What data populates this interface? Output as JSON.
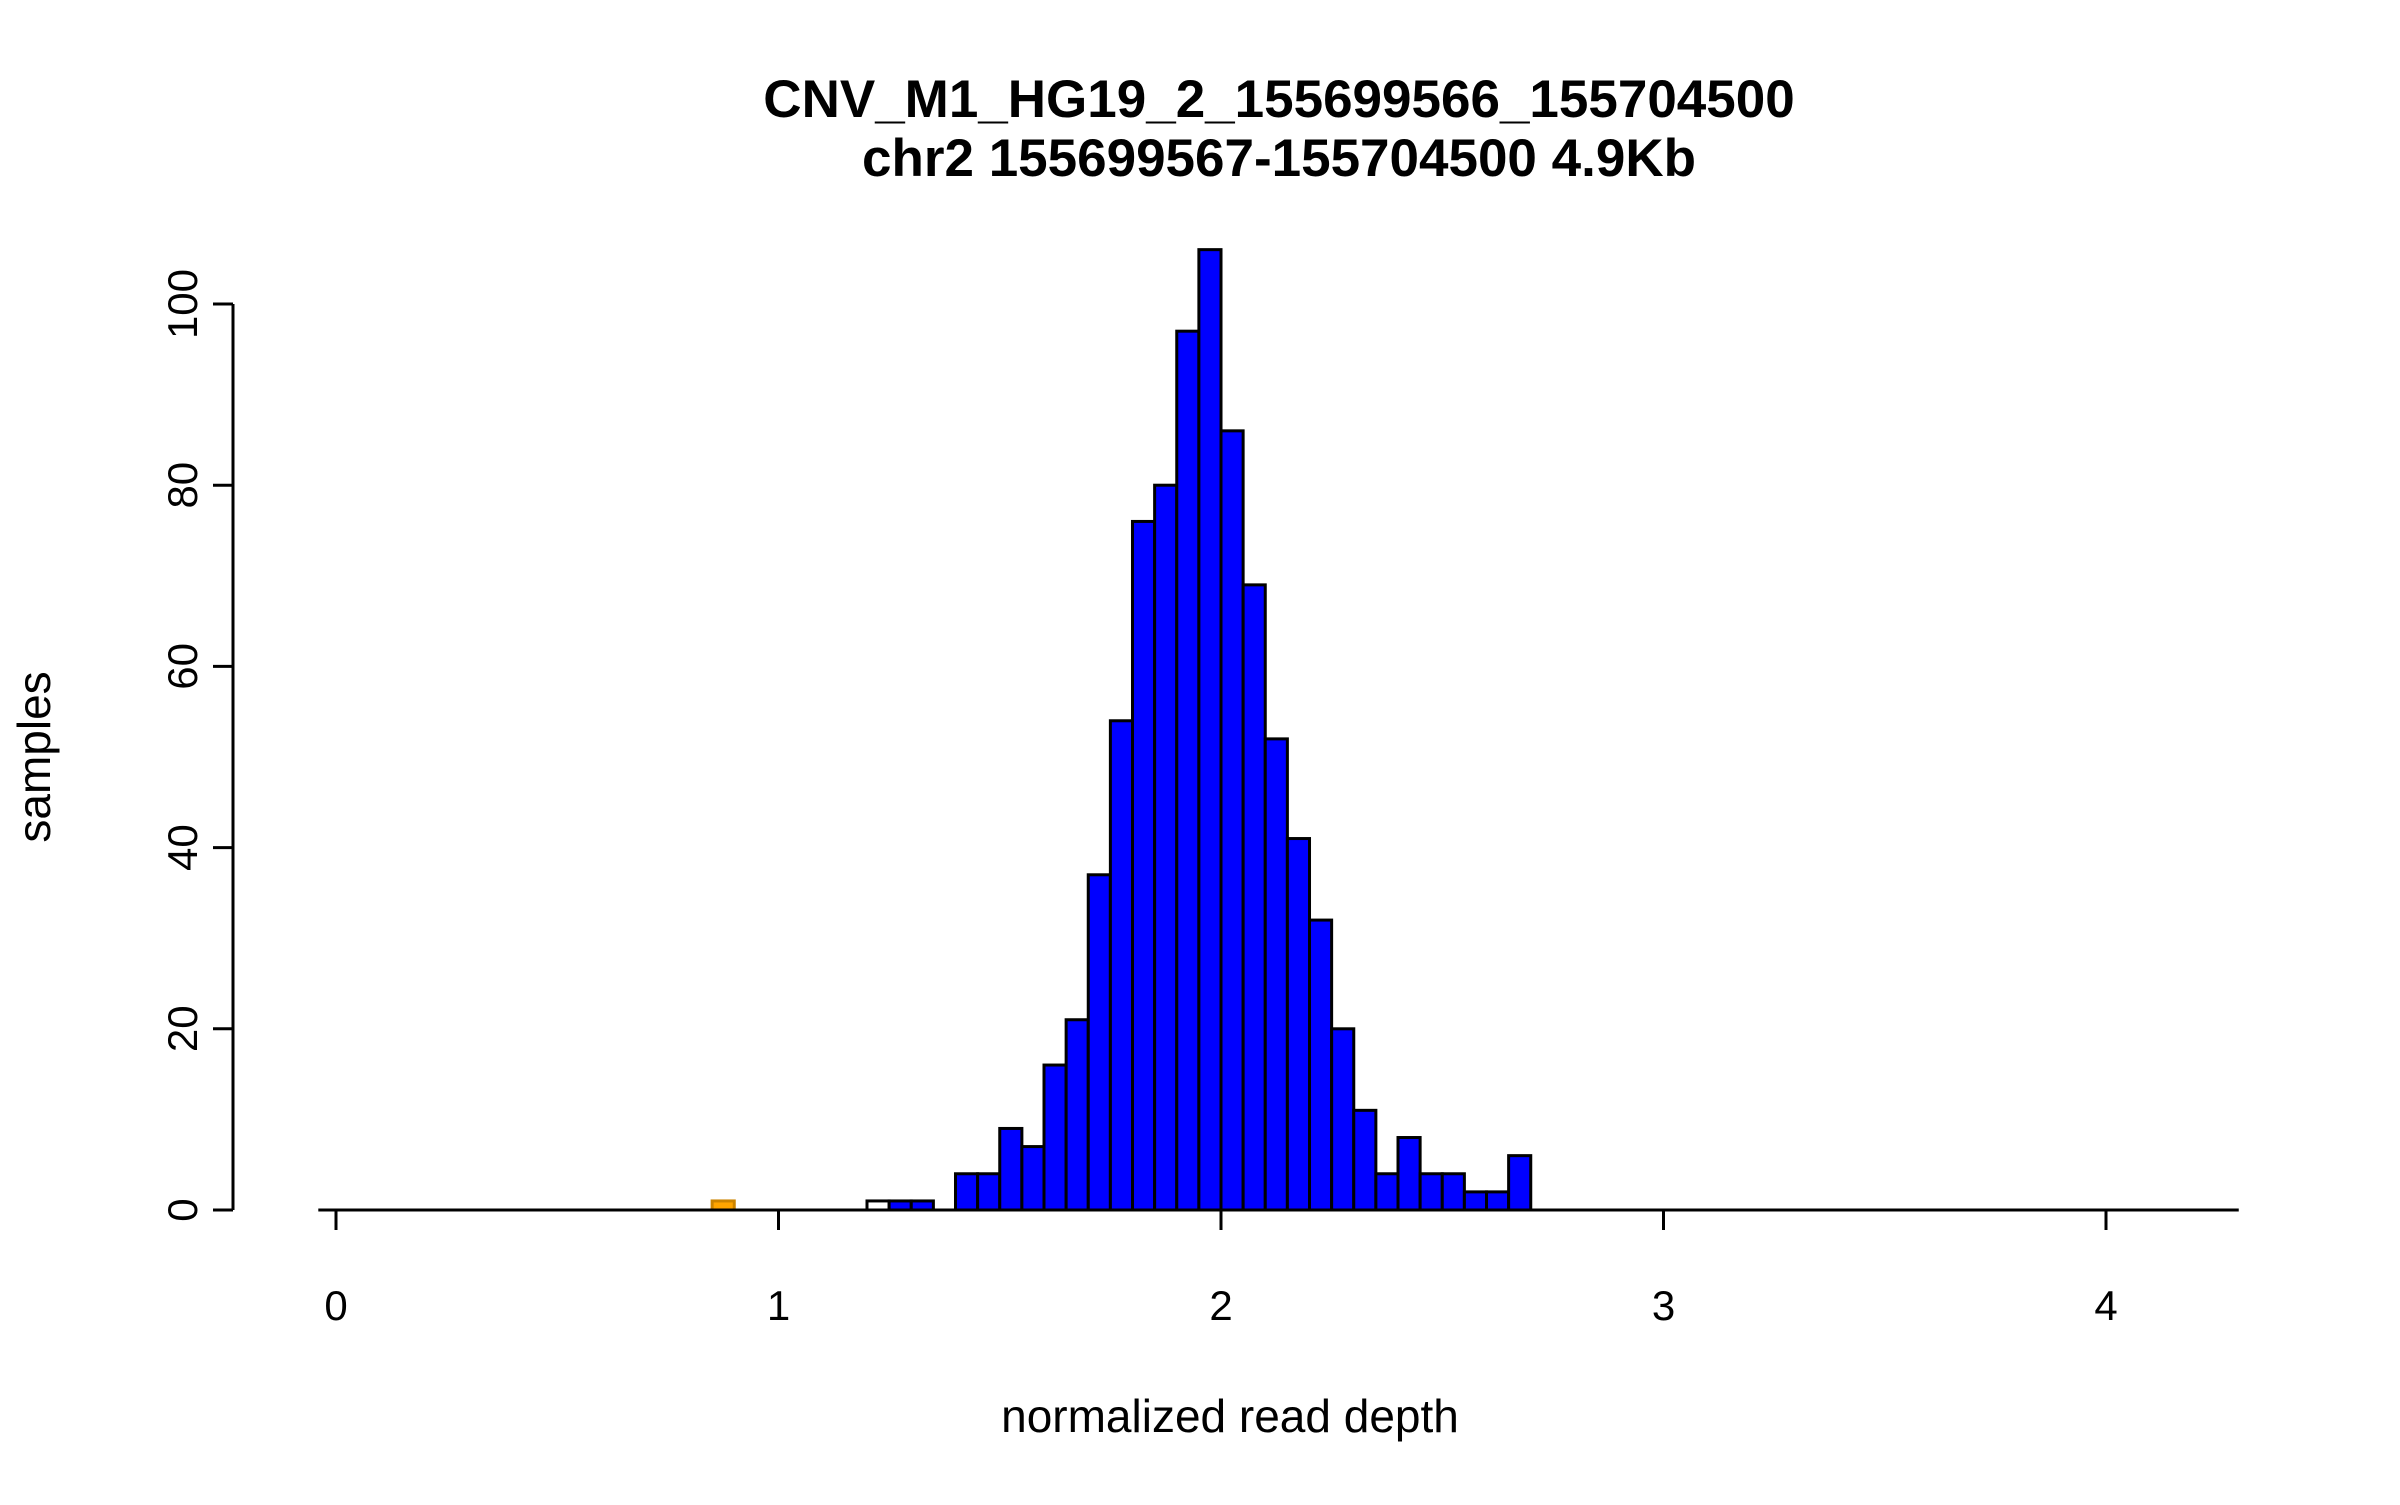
{
  "chart_data": {
    "type": "bar",
    "subtype": "histogram",
    "title": "CNV_M1_HG19_2_155699566_155704500",
    "subtitle": "chr2 155699567-155704500 4.9Kb",
    "xlabel": "normalized read depth",
    "ylabel": "samples",
    "x_ticks": [
      0,
      1,
      2,
      3,
      4
    ],
    "y_ticks": [
      0,
      20,
      40,
      60,
      80,
      100
    ],
    "xlim": [
      -0.04,
      4.3
    ],
    "ylim": [
      0,
      106
    ],
    "bin_width": 0.05,
    "grid": "off",
    "legend": "none",
    "bar_border_color": "#000000",
    "colors": {
      "main_fill": "#0000FF",
      "outlier_low_fill": "#FFA500",
      "outlier_white_fill": "#FFFFFF",
      "axis": "#000000",
      "background": "#FFFFFF"
    },
    "bars": [
      {
        "x": 0.85,
        "count": 1,
        "color": "#FFA500",
        "border": "#CC8400"
      },
      {
        "x": 1.2,
        "count": 1,
        "color": "#FFFFFF"
      },
      {
        "x": 1.25,
        "count": 1,
        "color": "#0000FF"
      },
      {
        "x": 1.3,
        "count": 1,
        "color": "#0000FF"
      },
      {
        "x": 1.4,
        "count": 4,
        "color": "#0000FF"
      },
      {
        "x": 1.45,
        "count": 4,
        "color": "#0000FF"
      },
      {
        "x": 1.5,
        "count": 9,
        "color": "#0000FF"
      },
      {
        "x": 1.55,
        "count": 7,
        "color": "#0000FF"
      },
      {
        "x": 1.6,
        "count": 16,
        "color": "#0000FF"
      },
      {
        "x": 1.65,
        "count": 21,
        "color": "#0000FF"
      },
      {
        "x": 1.7,
        "count": 37,
        "color": "#0000FF"
      },
      {
        "x": 1.75,
        "count": 54,
        "color": "#0000FF"
      },
      {
        "x": 1.8,
        "count": 76,
        "color": "#0000FF"
      },
      {
        "x": 1.85,
        "count": 80,
        "color": "#0000FF"
      },
      {
        "x": 1.9,
        "count": 97,
        "color": "#0000FF"
      },
      {
        "x": 1.95,
        "count": 106,
        "color": "#0000FF"
      },
      {
        "x": 2.0,
        "count": 86,
        "color": "#0000FF"
      },
      {
        "x": 2.05,
        "count": 69,
        "color": "#0000FF"
      },
      {
        "x": 2.1,
        "count": 52,
        "color": "#0000FF"
      },
      {
        "x": 2.15,
        "count": 41,
        "color": "#0000FF"
      },
      {
        "x": 2.2,
        "count": 32,
        "color": "#0000FF"
      },
      {
        "x": 2.25,
        "count": 20,
        "color": "#0000FF"
      },
      {
        "x": 2.3,
        "count": 11,
        "color": "#0000FF"
      },
      {
        "x": 2.35,
        "count": 4,
        "color": "#0000FF"
      },
      {
        "x": 2.4,
        "count": 8,
        "color": "#0000FF"
      },
      {
        "x": 2.45,
        "count": 4,
        "color": "#0000FF"
      },
      {
        "x": 2.5,
        "count": 4,
        "color": "#0000FF"
      },
      {
        "x": 2.55,
        "count": 2,
        "color": "#0000FF"
      },
      {
        "x": 2.6,
        "count": 2,
        "color": "#0000FF"
      },
      {
        "x": 2.65,
        "count": 6,
        "color": "#0000FF"
      }
    ]
  }
}
